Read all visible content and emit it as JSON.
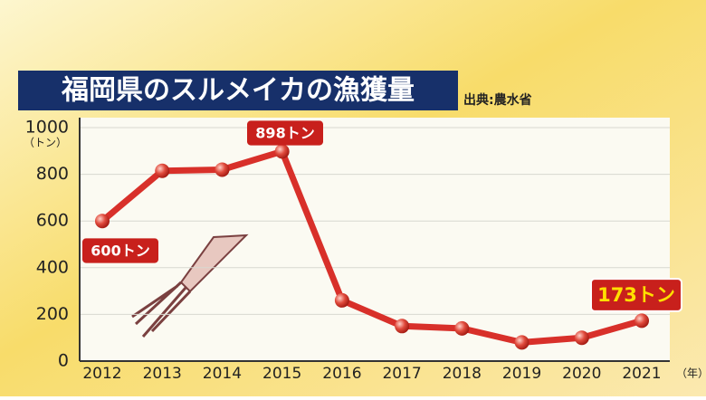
{
  "chart_data": {
    "type": "line",
    "title": "福岡県のスルメイカの漁獲量",
    "source": "出典:農水省",
    "y_unit": "（トン）",
    "x_unit": "（年）",
    "categories": [
      "2012",
      "2013",
      "2014",
      "2015",
      "2016",
      "2017",
      "2018",
      "2019",
      "2020",
      "2021"
    ],
    "values": [
      600,
      815,
      820,
      898,
      260,
      150,
      140,
      80,
      100,
      173
    ],
    "value_labels": [
      "600トン",
      null,
      null,
      "898トン",
      null,
      null,
      null,
      null,
      null,
      "173トン"
    ],
    "color": "#d8302a",
    "ylim": [
      0,
      1000
    ],
    "yticks": [
      0,
      200,
      400,
      600,
      800,
      1000
    ],
    "grid": true
  }
}
